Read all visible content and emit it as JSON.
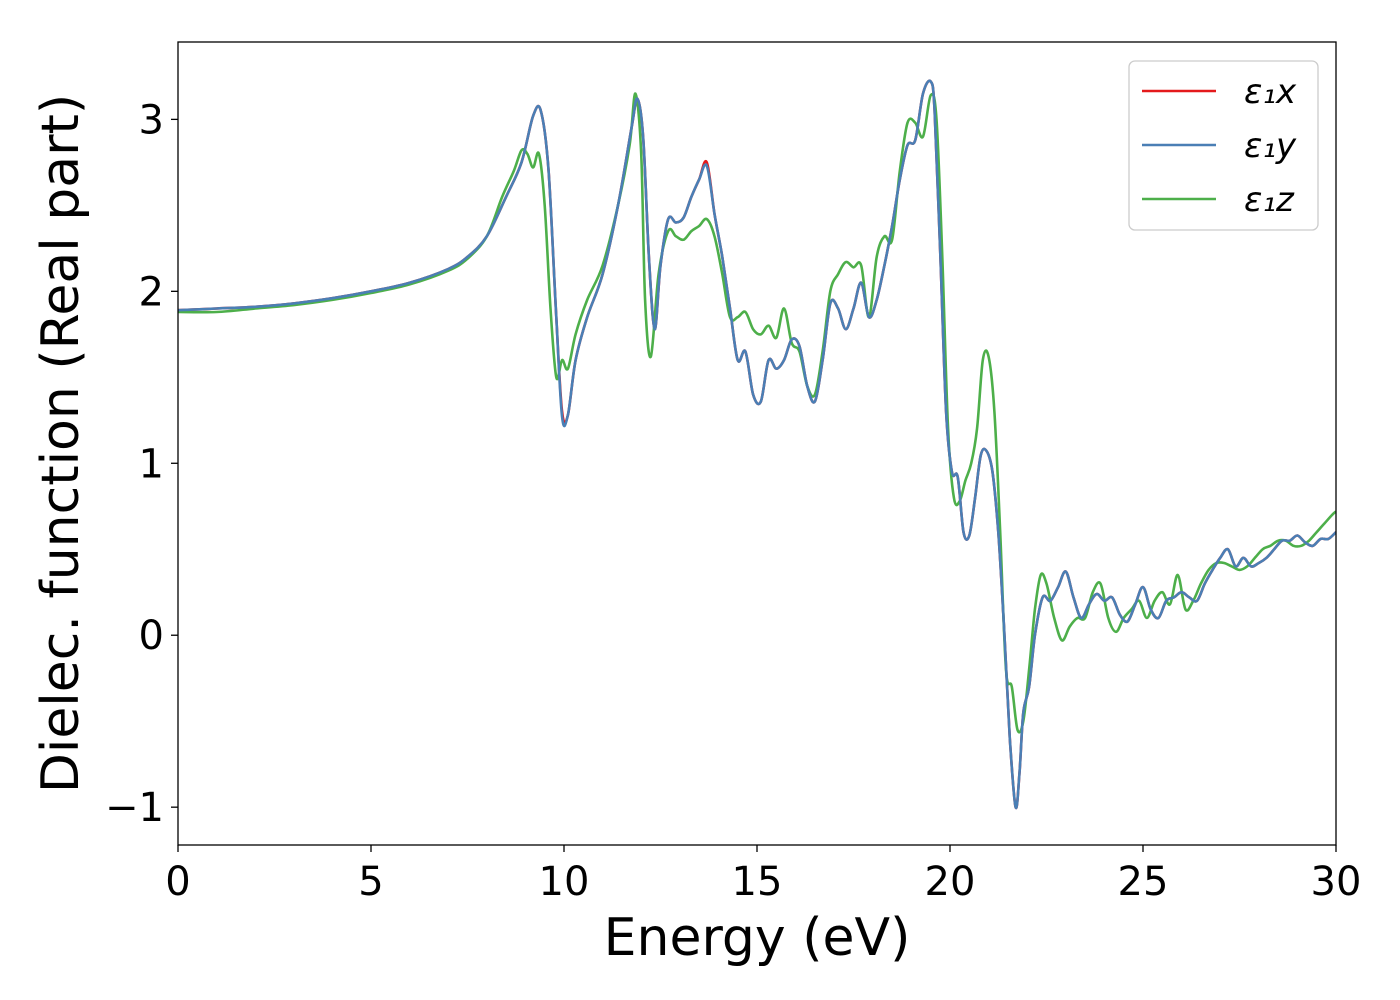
{
  "chart_data": {
    "type": "line",
    "title": "",
    "xlabel": "Energy (eV)",
    "ylabel": "Dielec. function (Real part)",
    "xlim": [
      0,
      30
    ],
    "ylim": [
      -1.22,
      3.45
    ],
    "xticks": [
      0,
      5,
      10,
      15,
      20,
      25,
      30
    ],
    "xtick_labels": [
      "0",
      "5",
      "10",
      "15",
      "20",
      "25",
      "30"
    ],
    "yticks": [
      -1,
      0,
      1,
      2,
      3
    ],
    "ytick_labels": [
      "−1",
      "0",
      "1",
      "2",
      "3"
    ],
    "grid": false,
    "legend_position": "top-right",
    "series": [
      {
        "name": "ε₁x",
        "color": "#e41a1c",
        "x": [
          0,
          1,
          2,
          3,
          4,
          5,
          6,
          7,
          7.5,
          8,
          8.5,
          8.9,
          9.2,
          9.4,
          9.6,
          9.8,
          9.95,
          10.1,
          10.3,
          10.6,
          11,
          11.4,
          11.75,
          11.9,
          12.05,
          12.2,
          12.35,
          12.5,
          12.7,
          12.9,
          13.1,
          13.3,
          13.5,
          13.7,
          13.9,
          14.1,
          14.3,
          14.5,
          14.7,
          14.9,
          15.1,
          15.3,
          15.5,
          15.7,
          15.9,
          16.1,
          16.3,
          16.5,
          16.7,
          16.9,
          17.1,
          17.3,
          17.5,
          17.7,
          17.9,
          18.1,
          18.3,
          18.5,
          18.7,
          18.9,
          19.1,
          19.3,
          19.5,
          19.6,
          19.75,
          19.9,
          20.05,
          20.2,
          20.35,
          20.5,
          20.65,
          20.8,
          20.95,
          21.1,
          21.25,
          21.4,
          21.55,
          21.7,
          21.8,
          21.9,
          22.05,
          22.2,
          22.4,
          22.6,
          22.8,
          23,
          23.2,
          23.4,
          23.6,
          23.8,
          24,
          24.2,
          24.4,
          24.6,
          24.8,
          25,
          25.2,
          25.4,
          25.6,
          25.8,
          26,
          26.2,
          26.4,
          26.6,
          26.8,
          27,
          27.2,
          27.4,
          27.6,
          27.8,
          28,
          28.2,
          28.4,
          28.6,
          28.8,
          29,
          29.2,
          29.4,
          29.6,
          29.8,
          30
        ],
        "y": [
          1.89,
          1.9,
          1.91,
          1.93,
          1.96,
          2.0,
          2.05,
          2.13,
          2.2,
          2.32,
          2.55,
          2.75,
          3.02,
          3.05,
          2.7,
          1.85,
          1.3,
          1.28,
          1.6,
          1.85,
          2.1,
          2.5,
          2.95,
          3.12,
          2.9,
          2.2,
          1.78,
          2.15,
          2.42,
          2.4,
          2.43,
          2.55,
          2.65,
          2.75,
          2.45,
          2.2,
          1.9,
          1.6,
          1.65,
          1.4,
          1.36,
          1.6,
          1.55,
          1.6,
          1.72,
          1.68,
          1.45,
          1.36,
          1.6,
          1.93,
          1.9,
          1.78,
          1.9,
          2.05,
          1.85,
          1.95,
          2.15,
          2.38,
          2.65,
          2.85,
          2.88,
          3.15,
          3.22,
          3.05,
          2.2,
          1.3,
          0.95,
          0.92,
          0.6,
          0.58,
          0.8,
          1.05,
          1.07,
          0.95,
          0.6,
          0.05,
          -0.6,
          -1.0,
          -0.8,
          -0.45,
          -0.3,
          0.0,
          0.22,
          0.2,
          0.28,
          0.37,
          0.22,
          0.1,
          0.18,
          0.24,
          0.2,
          0.22,
          0.12,
          0.08,
          0.18,
          0.28,
          0.15,
          0.1,
          0.2,
          0.22,
          0.25,
          0.22,
          0.2,
          0.3,
          0.38,
          0.45,
          0.5,
          0.4,
          0.45,
          0.4,
          0.42,
          0.45,
          0.5,
          0.55,
          0.55,
          0.58,
          0.54,
          0.52,
          0.56,
          0.56,
          0.6
        ]
      },
      {
        "name": "ε₁y",
        "color": "#4a7fb5",
        "x": [
          0,
          1,
          2,
          3,
          4,
          5,
          6,
          7,
          7.5,
          8,
          8.5,
          8.9,
          9.2,
          9.4,
          9.6,
          9.8,
          9.95,
          10.1,
          10.3,
          10.6,
          11,
          11.4,
          11.75,
          11.9,
          12.05,
          12.2,
          12.35,
          12.5,
          12.7,
          12.9,
          13.1,
          13.3,
          13.5,
          13.7,
          13.9,
          14.1,
          14.3,
          14.5,
          14.7,
          14.9,
          15.1,
          15.3,
          15.5,
          15.7,
          15.9,
          16.1,
          16.3,
          16.5,
          16.7,
          16.9,
          17.1,
          17.3,
          17.5,
          17.7,
          17.9,
          18.1,
          18.3,
          18.5,
          18.7,
          18.9,
          19.1,
          19.3,
          19.5,
          19.6,
          19.75,
          19.9,
          20.05,
          20.2,
          20.35,
          20.5,
          20.65,
          20.8,
          20.95,
          21.1,
          21.25,
          21.4,
          21.55,
          21.7,
          21.8,
          21.9,
          22.05,
          22.2,
          22.4,
          22.6,
          22.8,
          23,
          23.2,
          23.4,
          23.6,
          23.8,
          24,
          24.2,
          24.4,
          24.6,
          24.8,
          25,
          25.2,
          25.4,
          25.6,
          25.8,
          26,
          26.2,
          26.4,
          26.6,
          26.8,
          27,
          27.2,
          27.4,
          27.6,
          27.8,
          28,
          28.2,
          28.4,
          28.6,
          28.8,
          29,
          29.2,
          29.4,
          29.6,
          29.8,
          30
        ],
        "y": [
          1.89,
          1.9,
          1.91,
          1.93,
          1.96,
          2.0,
          2.05,
          2.13,
          2.2,
          2.32,
          2.55,
          2.75,
          3.02,
          3.05,
          2.7,
          1.85,
          1.27,
          1.28,
          1.6,
          1.85,
          2.1,
          2.5,
          2.95,
          3.12,
          2.9,
          2.2,
          1.78,
          2.15,
          2.42,
          2.4,
          2.43,
          2.55,
          2.65,
          2.73,
          2.45,
          2.2,
          1.9,
          1.6,
          1.65,
          1.4,
          1.36,
          1.6,
          1.55,
          1.6,
          1.72,
          1.68,
          1.45,
          1.36,
          1.6,
          1.93,
          1.9,
          1.78,
          1.9,
          2.05,
          1.85,
          1.95,
          2.15,
          2.38,
          2.65,
          2.85,
          2.88,
          3.15,
          3.22,
          3.05,
          2.2,
          1.3,
          0.95,
          0.92,
          0.6,
          0.58,
          0.8,
          1.05,
          1.07,
          0.95,
          0.6,
          0.05,
          -0.6,
          -1.0,
          -0.8,
          -0.45,
          -0.3,
          0.0,
          0.22,
          0.2,
          0.28,
          0.37,
          0.22,
          0.1,
          0.18,
          0.24,
          0.2,
          0.22,
          0.12,
          0.08,
          0.18,
          0.28,
          0.15,
          0.1,
          0.2,
          0.22,
          0.25,
          0.22,
          0.2,
          0.3,
          0.38,
          0.45,
          0.5,
          0.4,
          0.45,
          0.4,
          0.42,
          0.45,
          0.5,
          0.55,
          0.55,
          0.58,
          0.54,
          0.52,
          0.56,
          0.56,
          0.6
        ]
      },
      {
        "name": "ε₁z",
        "color": "#4daf4a",
        "x": [
          0,
          1,
          2,
          3,
          4,
          5,
          6,
          7,
          7.5,
          8,
          8.4,
          8.7,
          8.9,
          9.05,
          9.2,
          9.35,
          9.5,
          9.65,
          9.8,
          9.95,
          10.1,
          10.3,
          10.6,
          11,
          11.4,
          11.7,
          11.85,
          12.0,
          12.1,
          12.25,
          12.45,
          12.7,
          12.9,
          13.1,
          13.3,
          13.5,
          13.7,
          13.9,
          14.1,
          14.3,
          14.5,
          14.7,
          14.9,
          15.1,
          15.3,
          15.5,
          15.7,
          15.9,
          16.1,
          16.3,
          16.5,
          16.7,
          16.9,
          17.1,
          17.3,
          17.5,
          17.7,
          17.9,
          18.1,
          18.3,
          18.5,
          18.7,
          18.9,
          19.1,
          19.3,
          19.5,
          19.65,
          19.8,
          19.95,
          20.1,
          20.25,
          20.4,
          20.55,
          20.7,
          20.85,
          21.0,
          21.15,
          21.3,
          21.45,
          21.6,
          21.75,
          21.9,
          22.05,
          22.2,
          22.35,
          22.5,
          22.7,
          22.9,
          23.1,
          23.3,
          23.5,
          23.7,
          23.9,
          24.1,
          24.3,
          24.5,
          24.7,
          24.9,
          25.1,
          25.3,
          25.5,
          25.7,
          25.9,
          26.1,
          26.3,
          26.5,
          26.7,
          26.9,
          27.1,
          27.3,
          27.5,
          27.7,
          27.9,
          28.1,
          28.3,
          28.5,
          28.7,
          28.9,
          29.1,
          29.3,
          29.5,
          29.7,
          29.9,
          30
        ],
        "y": [
          1.88,
          1.88,
          1.9,
          1.92,
          1.95,
          1.99,
          2.04,
          2.12,
          2.19,
          2.32,
          2.55,
          2.7,
          2.82,
          2.8,
          2.72,
          2.8,
          2.5,
          1.9,
          1.5,
          1.6,
          1.55,
          1.75,
          1.95,
          2.15,
          2.5,
          2.85,
          3.15,
          2.8,
          1.95,
          1.62,
          2.1,
          2.35,
          2.32,
          2.3,
          2.35,
          2.38,
          2.42,
          2.32,
          2.1,
          1.85,
          1.85,
          1.88,
          1.78,
          1.75,
          1.8,
          1.73,
          1.9,
          1.7,
          1.65,
          1.45,
          1.4,
          1.65,
          2.0,
          2.1,
          2.17,
          2.14,
          2.15,
          1.85,
          2.2,
          2.32,
          2.3,
          2.7,
          2.98,
          2.98,
          2.9,
          3.14,
          3.0,
          2.2,
          1.2,
          0.8,
          0.78,
          0.9,
          1.0,
          1.2,
          1.6,
          1.62,
          1.3,
          0.6,
          -0.2,
          -0.3,
          -0.55,
          -0.5,
          -0.2,
          0.15,
          0.35,
          0.3,
          0.1,
          -0.03,
          0.05,
          0.1,
          0.1,
          0.25,
          0.3,
          0.1,
          0.02,
          0.1,
          0.15,
          0.2,
          0.1,
          0.2,
          0.25,
          0.18,
          0.35,
          0.15,
          0.2,
          0.3,
          0.38,
          0.42,
          0.42,
          0.4,
          0.38,
          0.4,
          0.45,
          0.5,
          0.52,
          0.55,
          0.55,
          0.52,
          0.52,
          0.55,
          0.6,
          0.65,
          0.7,
          0.72
        ]
      }
    ]
  }
}
